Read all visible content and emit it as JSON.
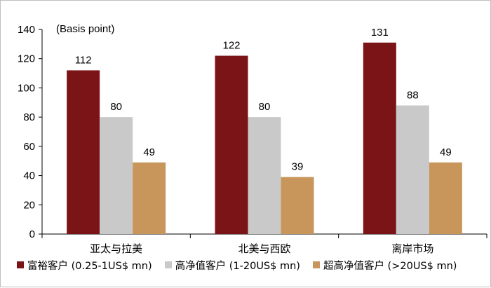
{
  "chart_data": {
    "type": "bar",
    "unit_label": "(Basis point)",
    "categories": [
      "亚太与拉美",
      "北美与西欧",
      "离岸市场"
    ],
    "series": [
      {
        "name": "富裕客户 (0.25-1US$ mn)",
        "values": [
          112,
          122,
          131
        ],
        "color": "#7b1416"
      },
      {
        "name": "高净值客户 (1-20US$ mn)",
        "values": [
          80,
          80,
          88
        ],
        "color": "#c9c9c9"
      },
      {
        "name": "超高净值客户 (>20US$ mn)",
        "values": [
          49,
          39,
          49
        ],
        "color": "#c8965a"
      }
    ],
    "ylim": [
      0,
      140
    ],
    "yticks": [
      0,
      20,
      40,
      60,
      80,
      100,
      120,
      140
    ],
    "grid": false,
    "legend_position": "bottom",
    "data_labels": true
  }
}
